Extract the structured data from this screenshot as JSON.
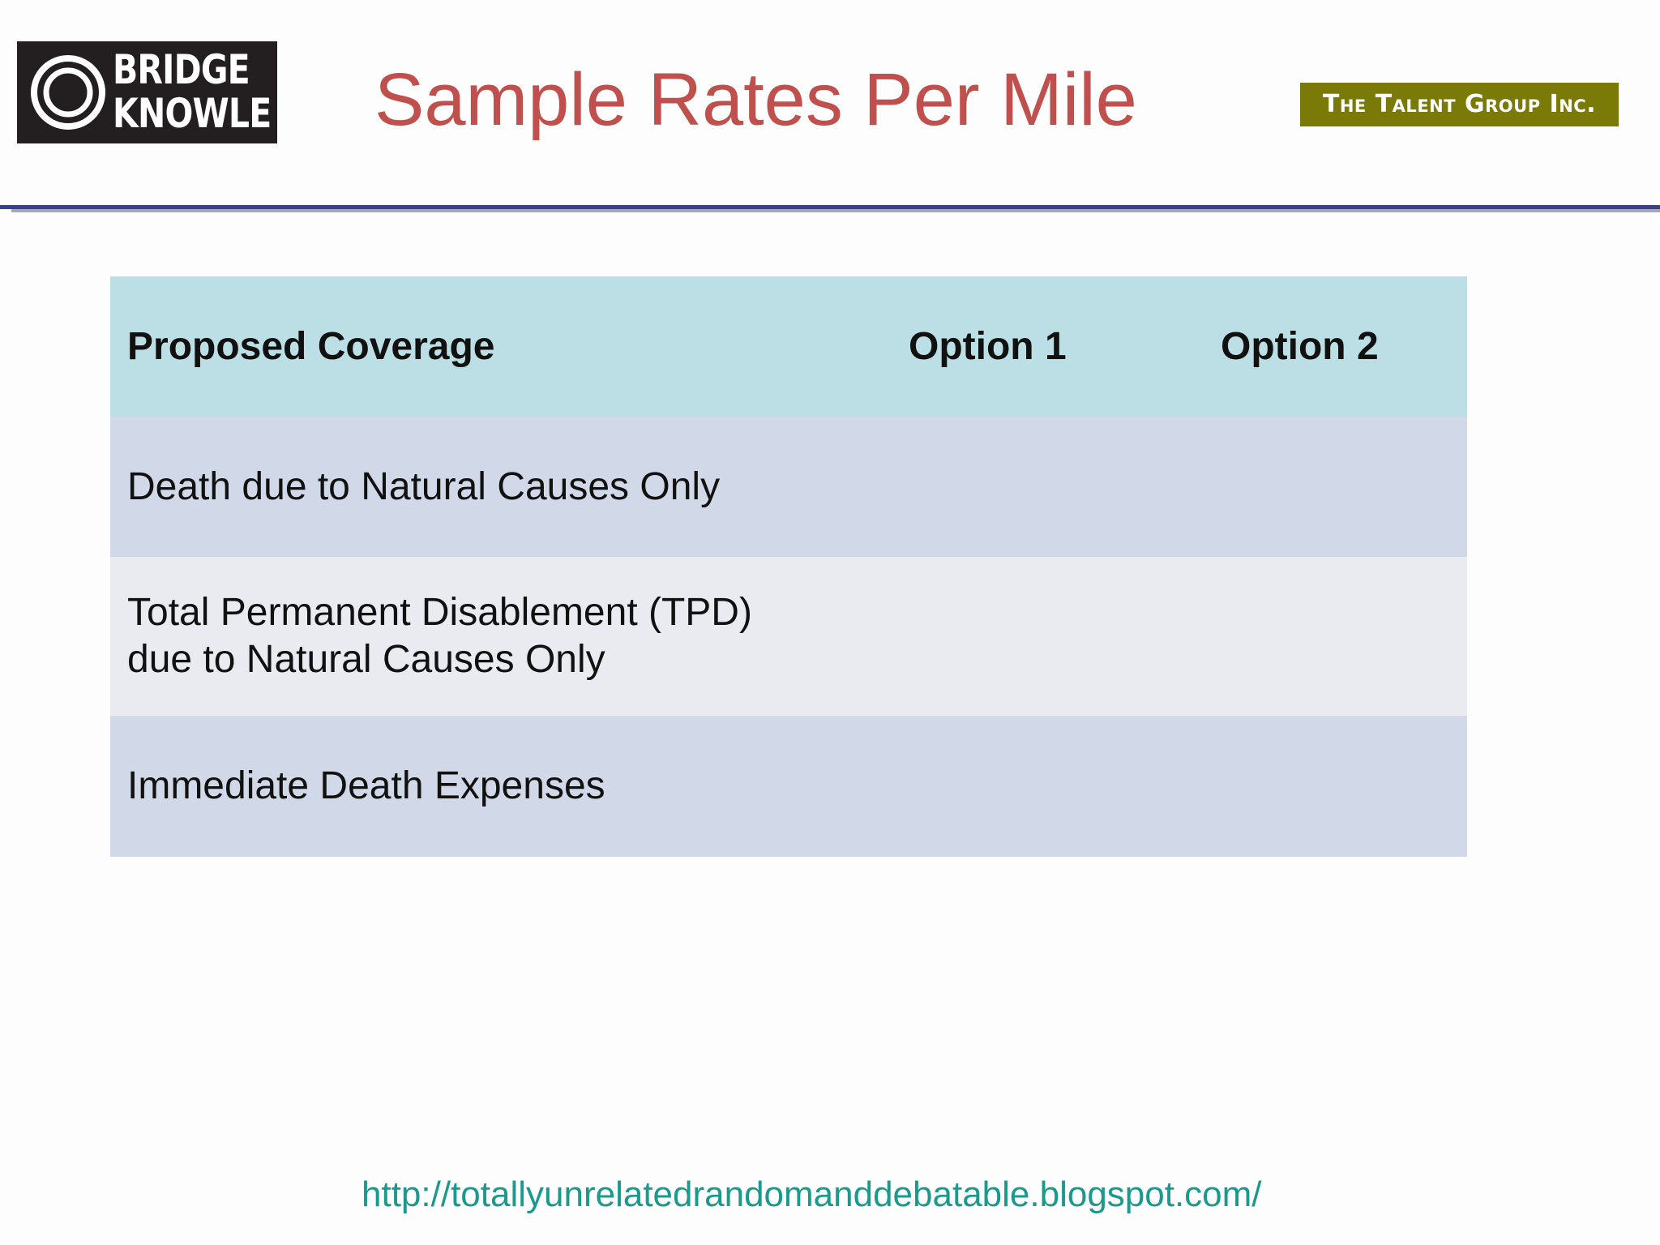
{
  "logos": {
    "bridge_knowle": {
      "line1": "BRIDGE",
      "line2": "KNOWLE"
    },
    "talent_group": {
      "text": "The Talent Group Inc."
    }
  },
  "slide": {
    "title": "Sample Rates Per Mile"
  },
  "table": {
    "headers": [
      "Proposed Coverage",
      "Option 1",
      "Option 2"
    ],
    "rows": [
      {
        "coverage_lines": [
          "Death due to Natural Causes Only"
        ],
        "option1": "",
        "option2": ""
      },
      {
        "coverage_lines": [
          "Total Permanent Disablement (TPD)",
          "due to Natural Causes Only"
        ],
        "option1": "",
        "option2": ""
      },
      {
        "coverage_lines": [
          "Immediate Death Expenses"
        ],
        "option1": "",
        "option2": ""
      }
    ]
  },
  "footer": {
    "url": "http://totallyunrelatedrandomanddebatable.blogspot.com/"
  },
  "colors": {
    "title": "#c0504d",
    "header_row": "#bbdfe4",
    "band_dark": "#d1d8e8",
    "band_light": "#e9ebf1",
    "divider": "#3b3f91",
    "talent_logo_bg": "#7a7a08",
    "url": "#1a9a8c"
  }
}
